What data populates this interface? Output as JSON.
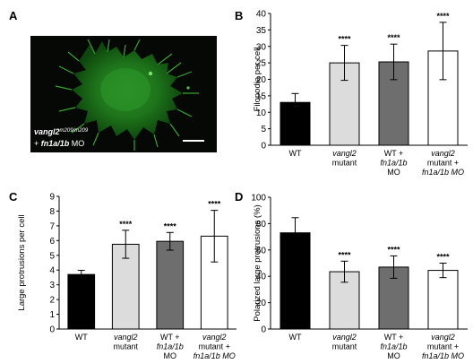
{
  "panels": {
    "a": {
      "letter": "A",
      "caption_line1_italic": "vangl2",
      "caption_line1_sup": "m209/m209",
      "caption_line2_prefix": "+ ",
      "caption_line2_italic": "fn1a/1b",
      "caption_line2_suffix": " MO"
    }
  },
  "chart_data": [
    {
      "panel": "B",
      "type": "bar",
      "ylabel": "Filopodia per cell",
      "ylim": [
        0,
        40
      ],
      "yticks": [
        0,
        5,
        10,
        15,
        20,
        25,
        30,
        35,
        40
      ],
      "grid": false,
      "categories": [
        {
          "lines": [
            {
              "text": "WT",
              "italic": false
            }
          ]
        },
        {
          "lines": [
            {
              "text": "vangl2",
              "italic": true
            },
            {
              "text": "mutant",
              "italic": false
            }
          ]
        },
        {
          "lines": [
            {
              "text": "WT +",
              "italic": false
            },
            {
              "text": "fn1a/1b",
              "italic": true
            },
            {
              "text": "MO",
              "italic": false
            }
          ]
        },
        {
          "lines": [
            {
              "text": "vangl2",
              "italic": true
            },
            {
              "text": "mutant +",
              "italic": false
            },
            {
              "text": "fn1a/1b MO",
              "italic": true
            }
          ]
        }
      ],
      "values": [
        13,
        25,
        25.3,
        28.6
      ],
      "errors": [
        2.7,
        5.3,
        5.4,
        8.7
      ],
      "significance": [
        "",
        "****",
        "****",
        "****"
      ],
      "colors": [
        "#000000",
        "#dcdcdc",
        "#6e6e6e",
        "#ffffff"
      ]
    },
    {
      "panel": "C",
      "type": "bar",
      "ylabel": "Large protrusions per cell",
      "ylim": [
        0,
        9
      ],
      "yticks": [
        0,
        1,
        2,
        3,
        4,
        5,
        6,
        7,
        8,
        9
      ],
      "grid": false,
      "categories": [
        {
          "lines": [
            {
              "text": "WT",
              "italic": false
            }
          ]
        },
        {
          "lines": [
            {
              "text": "vangl2",
              "italic": true
            },
            {
              "text": "mutant",
              "italic": false
            }
          ]
        },
        {
          "lines": [
            {
              "text": "WT +",
              "italic": false
            },
            {
              "text": "fn1a/1b",
              "italic": true
            },
            {
              "text": "MO",
              "italic": false
            }
          ]
        },
        {
          "lines": [
            {
              "text": "vangl2",
              "italic": true
            },
            {
              "text": "mutant +",
              "italic": false
            },
            {
              "text": "fn1a/1b MO",
              "italic": true
            }
          ]
        }
      ],
      "values": [
        3.7,
        5.75,
        5.95,
        6.3
      ],
      "errors": [
        0.28,
        0.95,
        0.6,
        1.75
      ],
      "significance": [
        "",
        "****",
        "****",
        "****"
      ],
      "colors": [
        "#000000",
        "#dcdcdc",
        "#6e6e6e",
        "#ffffff"
      ]
    },
    {
      "panel": "D",
      "type": "bar",
      "ylabel": "Polarized large protrusions (%)",
      "ylim": [
        0,
        100
      ],
      "yticks": [
        0,
        20,
        40,
        60,
        80,
        100
      ],
      "grid": false,
      "categories": [
        {
          "lines": [
            {
              "text": "WT",
              "italic": false
            }
          ]
        },
        {
          "lines": [
            {
              "text": "vangl2",
              "italic": true
            },
            {
              "text": "mutant",
              "italic": false
            }
          ]
        },
        {
          "lines": [
            {
              "text": "WT +",
              "italic": false
            },
            {
              "text": "fn1a/1b",
              "italic": true
            },
            {
              "text": "MO",
              "italic": false
            }
          ]
        },
        {
          "lines": [
            {
              "text": "vangl2",
              "italic": true
            },
            {
              "text": "mutant +",
              "italic": false
            },
            {
              "text": "fn1a/1b MO",
              "italic": true
            }
          ]
        }
      ],
      "values": [
        73,
        43.5,
        47,
        44.5
      ],
      "errors": [
        11.5,
        8,
        8.5,
        5.5
      ],
      "significance": [
        "",
        "****",
        "****",
        "****"
      ],
      "colors": [
        "#000000",
        "#dcdcdc",
        "#6e6e6e",
        "#ffffff"
      ]
    }
  ]
}
